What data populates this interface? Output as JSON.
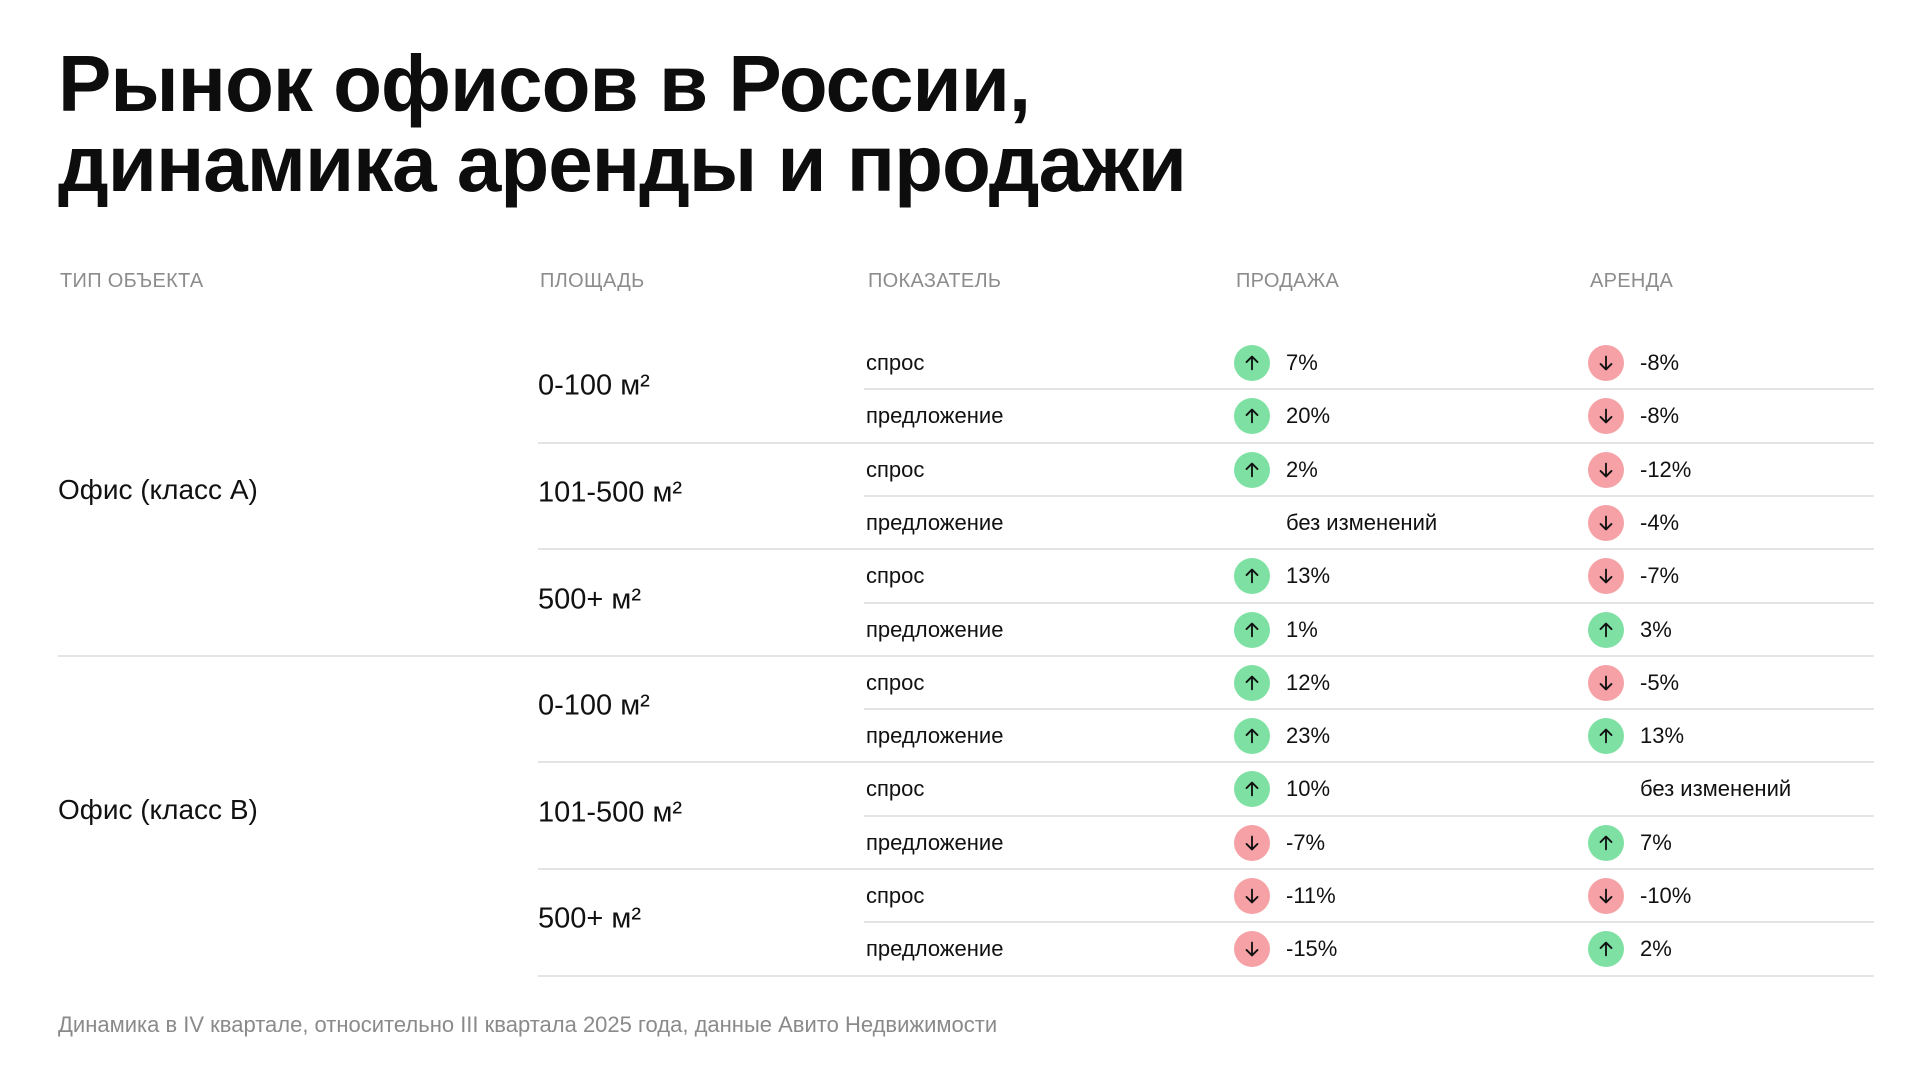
{
  "title": {
    "line1": "Рынок офисов в России,",
    "line2": "динамика аренды и продажи"
  },
  "headers": {
    "type": "ТИП ОБЪЕКТА",
    "area": "ПЛОЩАДЬ",
    "indicator": "ПОКАЗАТЕЛЬ",
    "sale": "ПРОДАЖА",
    "rent": "АРЕНДА"
  },
  "colors": {
    "up": "#7ee0a3",
    "down": "#f5a1a6"
  },
  "groups": [
    {
      "type": "Офис (класс А)",
      "areas": [
        {
          "area": "0-100 м²",
          "rows": [
            {
              "indicator": "спрос",
              "sale": {
                "dir": "up",
                "icon": "arrow-up-icon",
                "value": "7%"
              },
              "rent": {
                "dir": "down",
                "icon": "arrow-down-icon",
                "value": "-8%"
              }
            },
            {
              "indicator": "предложение",
              "sale": {
                "dir": "up",
                "icon": "arrow-up-icon",
                "value": "20%"
              },
              "rent": {
                "dir": "down",
                "icon": "arrow-down-icon",
                "value": "-8%"
              }
            }
          ]
        },
        {
          "area": "101-500 м²",
          "rows": [
            {
              "indicator": "спрос",
              "sale": {
                "dir": "up",
                "icon": "arrow-up-icon",
                "value": "2%"
              },
              "rent": {
                "dir": "down",
                "icon": "arrow-down-icon",
                "value": "-12%"
              }
            },
            {
              "indicator": "предложение",
              "sale": {
                "dir": "none",
                "icon": "",
                "value": "без изменений"
              },
              "rent": {
                "dir": "down",
                "icon": "arrow-down-icon",
                "value": "-4%"
              }
            }
          ]
        },
        {
          "area": "500+ м²",
          "rows": [
            {
              "indicator": "спрос",
              "sale": {
                "dir": "up",
                "icon": "arrow-up-icon",
                "value": "13%"
              },
              "rent": {
                "dir": "down",
                "icon": "arrow-down-icon",
                "value": "-7%"
              }
            },
            {
              "indicator": "предложение",
              "sale": {
                "dir": "up",
                "icon": "arrow-up-icon",
                "value": "1%"
              },
              "rent": {
                "dir": "up",
                "icon": "arrow-up-icon",
                "value": "3%"
              }
            }
          ]
        }
      ]
    },
    {
      "type": "Офис (класс B)",
      "areas": [
        {
          "area": "0-100 м²",
          "rows": [
            {
              "indicator": "спрос",
              "sale": {
                "dir": "up",
                "icon": "arrow-up-icon",
                "value": "12%"
              },
              "rent": {
                "dir": "down",
                "icon": "arrow-down-icon",
                "value": "-5%"
              }
            },
            {
              "indicator": "предложение",
              "sale": {
                "dir": "up",
                "icon": "arrow-up-icon",
                "value": "23%"
              },
              "rent": {
                "dir": "up",
                "icon": "arrow-up-icon",
                "value": "13%"
              }
            }
          ]
        },
        {
          "area": "101-500 м²",
          "rows": [
            {
              "indicator": "спрос",
              "sale": {
                "dir": "up",
                "icon": "arrow-up-icon",
                "value": "10%"
              },
              "rent": {
                "dir": "none",
                "icon": "",
                "value": "без изменений"
              }
            },
            {
              "indicator": "предложение",
              "sale": {
                "dir": "down",
                "icon": "arrow-down-icon",
                "value": "-7%"
              },
              "rent": {
                "dir": "up",
                "icon": "arrow-up-icon",
                "value": "7%"
              }
            }
          ]
        },
        {
          "area": "500+ м²",
          "rows": [
            {
              "indicator": "спрос",
              "sale": {
                "dir": "down",
                "icon": "arrow-down-icon",
                "value": "-11%"
              },
              "rent": {
                "dir": "down",
                "icon": "arrow-down-icon",
                "value": "-10%"
              }
            },
            {
              "indicator": "предложение",
              "sale": {
                "dir": "down",
                "icon": "arrow-down-icon",
                "value": "-15%"
              },
              "rent": {
                "dir": "up",
                "icon": "arrow-up-icon",
                "value": "2%"
              }
            }
          ]
        }
      ]
    }
  ],
  "footnote": "Динамика в IV квартале, относительно III квартала 2025 года, данные Авито Недвижимости"
}
